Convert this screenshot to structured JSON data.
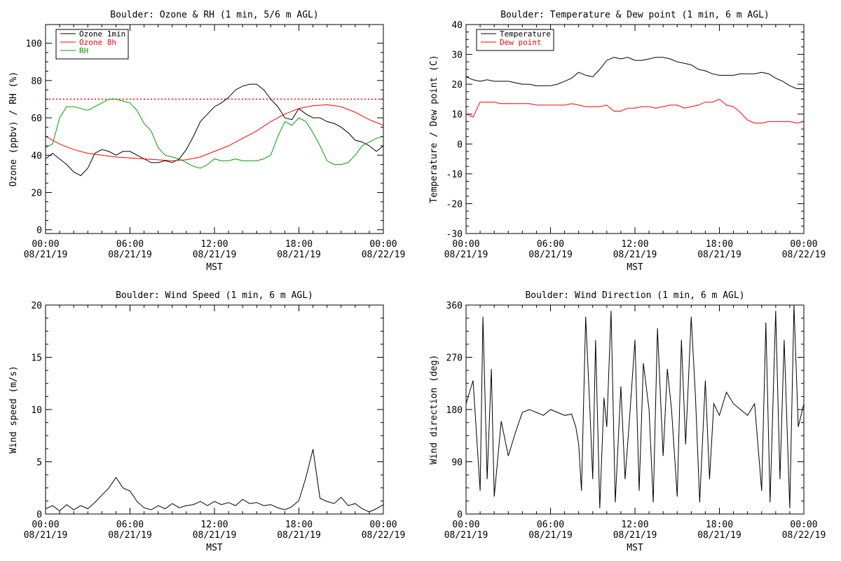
{
  "chart_data": [
    {
      "type": "line",
      "title": "Boulder: Ozone & RH (1 min, 5/6 m AGL)",
      "xlabel": "MST",
      "ylabel": "Ozone (ppbv) / RH (%)",
      "x_ticks": [
        "00:00\n08/21/19",
        "06:00\n08/21/19",
        "12:00\n08/21/19",
        "18:00\n08/21/19",
        "00:00\n08/22/19"
      ],
      "xlim": [
        0,
        24
      ],
      "ylim": [
        -2,
        110
      ],
      "y_ticks": [
        0,
        20,
        40,
        60,
        80,
        100
      ],
      "legend": [
        "Ozone 1min",
        "Ozone 8h",
        "RH"
      ],
      "legend_position": "top-left",
      "reference_line": {
        "y": 70,
        "style": "dotted",
        "color": "#ff0000"
      },
      "series": [
        {
          "name": "Ozone 1min",
          "color": "#000000",
          "x": [
            0,
            0.5,
            1,
            1.5,
            2,
            2.5,
            3,
            3.5,
            4,
            4.5,
            5,
            5.5,
            6,
            6.5,
            7,
            7.5,
            8,
            8.5,
            9,
            9.5,
            10,
            10.5,
            11,
            11.5,
            12,
            12.5,
            13,
            13.5,
            14,
            14.5,
            15,
            15.5,
            16,
            16.5,
            17,
            17.5,
            18,
            18.5,
            19,
            19.5,
            20,
            20.5,
            21,
            21.5,
            22,
            22.5,
            23,
            23.5,
            24
          ],
          "y": [
            38,
            41,
            38,
            35,
            31,
            29,
            33,
            41,
            43,
            42,
            40,
            42,
            42,
            40,
            38,
            36,
            36,
            37,
            36,
            38,
            43,
            50,
            58,
            62,
            66,
            68,
            71,
            75,
            77,
            78,
            78,
            75,
            70,
            66,
            60,
            59,
            65,
            62,
            60,
            60,
            58,
            57,
            55,
            52,
            48,
            47,
            45,
            42,
            45
          ]
        },
        {
          "name": "Ozone 8h",
          "color": "#ff0000",
          "x": [
            0,
            1,
            2,
            3,
            4,
            5,
            6,
            7,
            8,
            9,
            10,
            11,
            12,
            13,
            14,
            15,
            16,
            17,
            18,
            19,
            20,
            21,
            22,
            23,
            24
          ],
          "y": [
            50,
            46,
            43,
            41,
            40,
            39,
            38.5,
            38,
            37.5,
            37,
            37.5,
            39,
            42,
            45,
            49,
            53,
            58,
            62,
            65,
            66.5,
            67,
            66,
            63,
            59,
            56
          ]
        },
        {
          "name": "RH",
          "color": "#00a000",
          "x": [
            0,
            0.5,
            1,
            1.5,
            2,
            2.5,
            3,
            3.5,
            4,
            4.5,
            5,
            5.5,
            6,
            6.5,
            7,
            7.5,
            8,
            8.5,
            9,
            9.5,
            10,
            10.5,
            11,
            11.5,
            12,
            12.5,
            13,
            13.5,
            14,
            14.5,
            15,
            15.5,
            16,
            16.5,
            17,
            17.5,
            18,
            18.5,
            19,
            19.5,
            20,
            20.5,
            21,
            21.5,
            22,
            22.5,
            23,
            23.5,
            24
          ],
          "y": [
            44,
            46,
            60,
            66,
            66,
            65,
            64,
            66,
            68,
            70,
            70,
            69,
            68,
            64,
            57,
            53,
            44,
            40,
            39,
            38,
            36,
            34,
            33,
            35,
            38,
            37,
            37,
            38,
            37,
            37,
            37,
            38,
            40,
            50,
            58,
            56,
            60,
            58,
            52,
            45,
            37,
            35,
            35,
            36,
            40,
            45,
            47,
            49,
            50
          ]
        }
      ]
    },
    {
      "type": "line",
      "title": "Boulder: Temperature & Dew point (1 min, 6 m AGL)",
      "xlabel": "MST",
      "ylabel": "Temperature / Dew point (C)",
      "x_ticks": [
        "00:00\n08/21/19",
        "06:00\n08/21/19",
        "12:00\n08/21/19",
        "18:00\n08/21/19",
        "00:00\n08/22/19"
      ],
      "xlim": [
        0,
        24
      ],
      "ylim": [
        -30,
        40
      ],
      "y_ticks": [
        -30,
        -20,
        -10,
        0,
        10,
        20,
        30,
        40
      ],
      "legend": [
        "Temperature",
        "Dew point"
      ],
      "legend_position": "top-left",
      "series": [
        {
          "name": "Temperature",
          "color": "#000000",
          "x": [
            0,
            0.5,
            1,
            1.5,
            2,
            2.5,
            3,
            3.5,
            4,
            4.5,
            5,
            5.5,
            6,
            6.5,
            7,
            7.5,
            8,
            8.5,
            9,
            9.5,
            10,
            10.5,
            11,
            11.5,
            12,
            12.5,
            13,
            13.5,
            14,
            14.5,
            15,
            15.5,
            16,
            16.5,
            17,
            17.5,
            18,
            18.5,
            19,
            19.5,
            20,
            20.5,
            21,
            21.5,
            22,
            22.5,
            23,
            23.5,
            24
          ],
          "y": [
            22.5,
            21.5,
            21,
            21.5,
            21,
            21,
            21,
            20.5,
            20,
            20,
            19.5,
            19.5,
            19.5,
            20,
            21,
            22,
            24,
            23,
            22.5,
            25,
            28,
            29,
            28.5,
            29,
            28,
            28,
            28.5,
            29,
            29,
            28.5,
            27.5,
            27,
            26.5,
            25,
            24.5,
            23.5,
            23,
            23,
            23,
            23.5,
            23.5,
            23.5,
            24,
            23.5,
            22,
            21,
            19.5,
            18.5,
            18.5
          ]
        },
        {
          "name": "Dew point",
          "color": "#ff0000",
          "x": [
            0,
            0.5,
            1,
            1.5,
            2,
            2.5,
            3,
            3.5,
            4,
            4.5,
            5,
            5.5,
            6,
            6.5,
            7,
            7.5,
            8,
            8.5,
            9,
            9.5,
            10,
            10.5,
            11,
            11.5,
            12,
            12.5,
            13,
            13.5,
            14,
            14.5,
            15,
            15.5,
            16,
            16.5,
            17,
            17.5,
            18,
            18.5,
            19,
            19.5,
            20,
            20.5,
            21,
            21.5,
            22,
            22.5,
            23,
            23.5,
            24
          ],
          "y": [
            10,
            9,
            14,
            14,
            14,
            13.5,
            13.5,
            13.5,
            13.5,
            13.5,
            13,
            13,
            13,
            13,
            13,
            13.5,
            13,
            12.5,
            12.5,
            12.5,
            13,
            11,
            11,
            12,
            12,
            12.5,
            12.5,
            12,
            12.5,
            13,
            13,
            12,
            12.5,
            13,
            14,
            14,
            15,
            13,
            12.5,
            10.5,
            8,
            7,
            7,
            7.5,
            7.5,
            7.5,
            7.5,
            7,
            7.5
          ]
        }
      ]
    },
    {
      "type": "line",
      "title": "Boulder: Wind Speed (1 min, 6 m AGL)",
      "xlabel": "MST",
      "ylabel": "Wind speed (m/s)",
      "x_ticks": [
        "00:00\n08/21/19",
        "06:00\n08/21/19",
        "12:00\n08/21/19",
        "18:00\n08/21/19",
        "00:00\n08/22/19"
      ],
      "xlim": [
        0,
        24
      ],
      "ylim": [
        0,
        20
      ],
      "y_ticks": [
        0,
        5,
        10,
        15,
        20
      ],
      "series": [
        {
          "name": "",
          "color": "#000000",
          "x": [
            0,
            0.5,
            1,
            1.5,
            2,
            2.5,
            3,
            3.5,
            4,
            4.5,
            5,
            5.5,
            6,
            6.5,
            7,
            7.5,
            8,
            8.5,
            9,
            9.5,
            10,
            10.5,
            11,
            11.5,
            12,
            12.5,
            13,
            13.5,
            14,
            14.5,
            15,
            15.5,
            16,
            16.5,
            17,
            17.5,
            18,
            18.5,
            19,
            19.5,
            20,
            20.5,
            21,
            21.5,
            22,
            22.5,
            23,
            23.5,
            24
          ],
          "y": [
            0.5,
            0.8,
            0.3,
            0.9,
            0.4,
            0.8,
            0.5,
            1.1,
            1.8,
            2.5,
            3.5,
            2.5,
            2.2,
            1.2,
            0.6,
            0.4,
            0.8,
            0.5,
            1,
            0.6,
            0.8,
            0.9,
            1.2,
            0.8,
            1.2,
            0.9,
            1.1,
            0.8,
            1.4,
            1,
            1.1,
            0.8,
            0.9,
            0.6,
            0.4,
            0.7,
            1.3,
            3.5,
            6.2,
            1.5,
            1.2,
            1,
            1.6,
            0.8,
            1,
            0.5,
            0.2,
            0.5,
            0.9
          ]
        }
      ]
    },
    {
      "type": "line",
      "title": "Boulder: Wind Direction (1 min, 6 m AGL)",
      "xlabel": "MST",
      "ylabel": "Wind direction (deg)",
      "x_ticks": [
        "00:00\n08/21/19",
        "06:00\n08/21/19",
        "12:00\n08/21/19",
        "18:00\n08/21/19",
        "00:00\n08/22/19"
      ],
      "xlim": [
        0,
        24
      ],
      "ylim": [
        0,
        360
      ],
      "y_ticks": [
        0,
        90,
        180,
        270,
        360
      ],
      "series": [
        {
          "name": "",
          "color": "#000000",
          "x": [
            0,
            0.5,
            1,
            1.2,
            1.5,
            1.8,
            2,
            2.5,
            3,
            3.5,
            4,
            4.5,
            5,
            5.5,
            6,
            6.5,
            7,
            7.5,
            7.8,
            8,
            8.2,
            8.5,
            8.8,
            9,
            9.2,
            9.5,
            9.8,
            10,
            10.3,
            10.6,
            11,
            11.3,
            11.6,
            12,
            12.3,
            12.6,
            13,
            13.3,
            13.6,
            14,
            14.3,
            14.6,
            15,
            15.3,
            15.6,
            16,
            16.3,
            16.6,
            17,
            17.3,
            17.6,
            18,
            18.5,
            19,
            19.5,
            20,
            20.5,
            21,
            21.3,
            21.6,
            22,
            22.3,
            22.6,
            23,
            23.3,
            23.6,
            24
          ],
          "y": [
            190,
            230,
            40,
            340,
            60,
            250,
            30,
            160,
            100,
            140,
            175,
            180,
            175,
            170,
            180,
            175,
            170,
            172,
            150,
            120,
            40,
            340,
            180,
            60,
            300,
            10,
            200,
            150,
            350,
            20,
            220,
            60,
            160,
            300,
            40,
            260,
            180,
            20,
            320,
            100,
            250,
            180,
            30,
            300,
            120,
            340,
            200,
            20,
            230,
            60,
            190,
            170,
            210,
            190,
            180,
            170,
            190,
            40,
            330,
            20,
            350,
            60,
            300,
            10,
            360,
            150,
            190
          ]
        }
      ]
    }
  ]
}
